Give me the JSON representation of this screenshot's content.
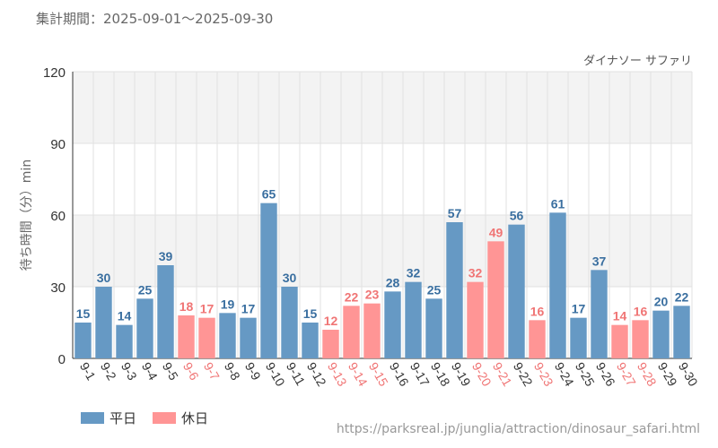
{
  "header": {
    "period_label": "集計期間：2025-09-01～2025-09-30"
  },
  "legend": {
    "weekday_label": "平日",
    "holiday_label": "休日"
  },
  "source_url": "https://parksreal.jp/junglia/attraction/dinosaur_safari.html",
  "colors": {
    "weekday": "#6699c4",
    "holiday": "#ff9595",
    "weekday_text": "#3a6fa0",
    "holiday_text": "#f07575",
    "axis_text": "#666666"
  },
  "chart_data": {
    "type": "bar",
    "title": "ダイナソー サファリ",
    "xlabel": "",
    "ylabel": "待ち時間（分）min",
    "ylim": [
      0,
      120
    ],
    "yticks": [
      0,
      30,
      60,
      90,
      120
    ],
    "categories": [
      "9-1",
      "9-2",
      "9-3",
      "9-4",
      "9-5",
      "9-6",
      "9-7",
      "9-8",
      "9-9",
      "9-10",
      "9-11",
      "9-12",
      "9-13",
      "9-14",
      "9-15",
      "9-16",
      "9-17",
      "9-18",
      "9-19",
      "9-20",
      "9-21",
      "9-22",
      "9-23",
      "9-24",
      "9-25",
      "9-26",
      "9-27",
      "9-28",
      "9-29",
      "9-30"
    ],
    "values": [
      15,
      30,
      14,
      25,
      39,
      18,
      17,
      19,
      17,
      65,
      30,
      15,
      12,
      22,
      23,
      28,
      32,
      25,
      57,
      32,
      49,
      56,
      16,
      61,
      17,
      37,
      14,
      16,
      20,
      22
    ],
    "day_type": [
      "weekday",
      "weekday",
      "weekday",
      "weekday",
      "weekday",
      "holiday",
      "holiday",
      "weekday",
      "weekday",
      "weekday",
      "weekday",
      "weekday",
      "holiday",
      "holiday",
      "holiday",
      "weekday",
      "weekday",
      "weekday",
      "weekday",
      "holiday",
      "holiday",
      "weekday",
      "holiday",
      "weekday",
      "weekday",
      "weekday",
      "holiday",
      "holiday",
      "weekday",
      "weekday"
    ]
  }
}
